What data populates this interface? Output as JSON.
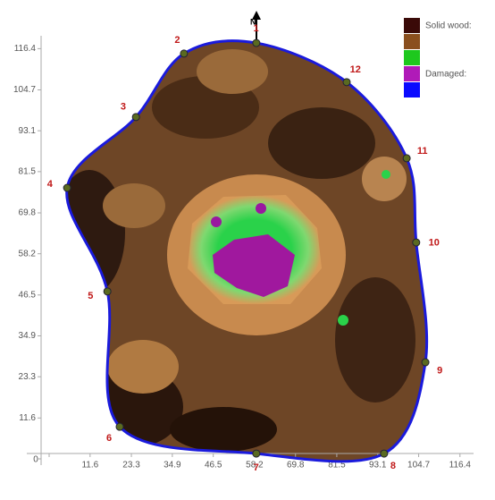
{
  "chart_data": {
    "type": "tomogram",
    "north_label": "N",
    "xlim": [
      0,
      116.4
    ],
    "ylim": [
      0,
      116.4
    ],
    "xticks": [
      0,
      11.6,
      23.3,
      34.9,
      46.5,
      58.2,
      69.8,
      81.5,
      93.1,
      104.7,
      116.4
    ],
    "yticks": [
      0,
      11.6,
      23.3,
      34.9,
      46.5,
      58.2,
      69.8,
      81.5,
      93.1,
      104.7,
      116.4
    ],
    "outline_color": "#1a1adc",
    "sensors": {
      "labels": [
        "1",
        "2",
        "3",
        "4",
        "5",
        "6",
        "7",
        "8",
        "9",
        "10",
        "11",
        "12"
      ],
      "x": [
        58.7,
        38.2,
        24.6,
        5.1,
        16.5,
        20,
        58.7,
        94.9,
        106.6,
        104,
        101.3,
        84.3
      ],
      "y": [
        118,
        115,
        97,
        76.9,
        47.5,
        9.1,
        1.5,
        1.5,
        27.4,
        61.4,
        85.3,
        106.9
      ]
    },
    "legend": {
      "labels": [
        "Solid wood:",
        "Damaged:"
      ],
      "colors": [
        "#3a0a08",
        "#8a4f1e",
        "#1ec81e",
        "#b01ab8",
        "#0a0aff"
      ]
    }
  }
}
